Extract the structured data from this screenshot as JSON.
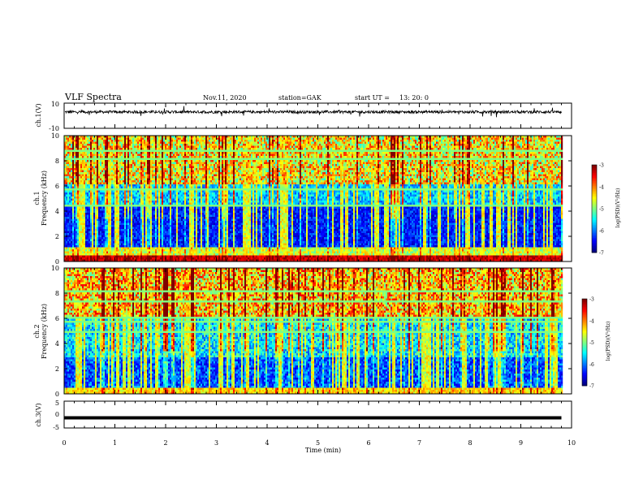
{
  "header": {
    "title": "VLF Spectra",
    "date": "Nov.11, 2020",
    "station": "station=GAK",
    "start_label": "start  UT  =",
    "start_time": "13: 20: 0"
  },
  "chart_data": [
    {
      "type": "line",
      "id": "ch1_waveform",
      "ylabel": "ch.1(V)",
      "ylim": [
        -10,
        10
      ],
      "y_ticks": [
        "10",
        "-10"
      ],
      "xlim": [
        0,
        10
      ],
      "description_baseline": 3,
      "amplitude_range": [
        -1,
        4
      ]
    },
    {
      "type": "heatmap",
      "id": "ch1_spectrogram",
      "ylabel_line1": "ch.1",
      "ylabel_line2": "Frequency (kHz)",
      "ylim": [
        0,
        10
      ],
      "y_ticks": [
        "0",
        "2",
        "4",
        "6",
        "8",
        "10"
      ],
      "xlim": [
        0,
        10
      ],
      "data_end_min": 9.8,
      "colorbar": {
        "label": "log(PSD)(V²/Hz)",
        "range": [
          -7,
          -3
        ],
        "ticks": [
          "-3",
          "-4",
          "-5",
          "-6",
          "-7"
        ]
      }
    },
    {
      "type": "heatmap",
      "id": "ch2_spectrogram",
      "ylabel_line1": "ch.2",
      "ylabel_line2": "Frequency (kHz)",
      "ylim": [
        0,
        10
      ],
      "y_ticks": [
        "0",
        "2",
        "4",
        "6",
        "8",
        "10"
      ],
      "xlim": [
        0,
        10
      ],
      "data_end_min": 9.8,
      "colorbar": {
        "label": "log(PSD)(V²/Hz)",
        "range": [
          -7,
          -3
        ],
        "ticks": [
          "-3",
          "-4",
          "-5",
          "-6",
          "-7"
        ]
      }
    },
    {
      "type": "line",
      "id": "ch3_waveform",
      "ylabel": "ch.3(V)",
      "ylim": [
        -5,
        5
      ],
      "y_ticks": [
        "5",
        "0",
        "-5"
      ],
      "xlim": [
        0,
        10
      ],
      "constant_value": -1.2
    }
  ],
  "x_axis": {
    "label": "Time  (min)",
    "ticks": [
      "0",
      "1",
      "2",
      "3",
      "4",
      "5",
      "6",
      "7",
      "8",
      "9",
      "10"
    ]
  }
}
